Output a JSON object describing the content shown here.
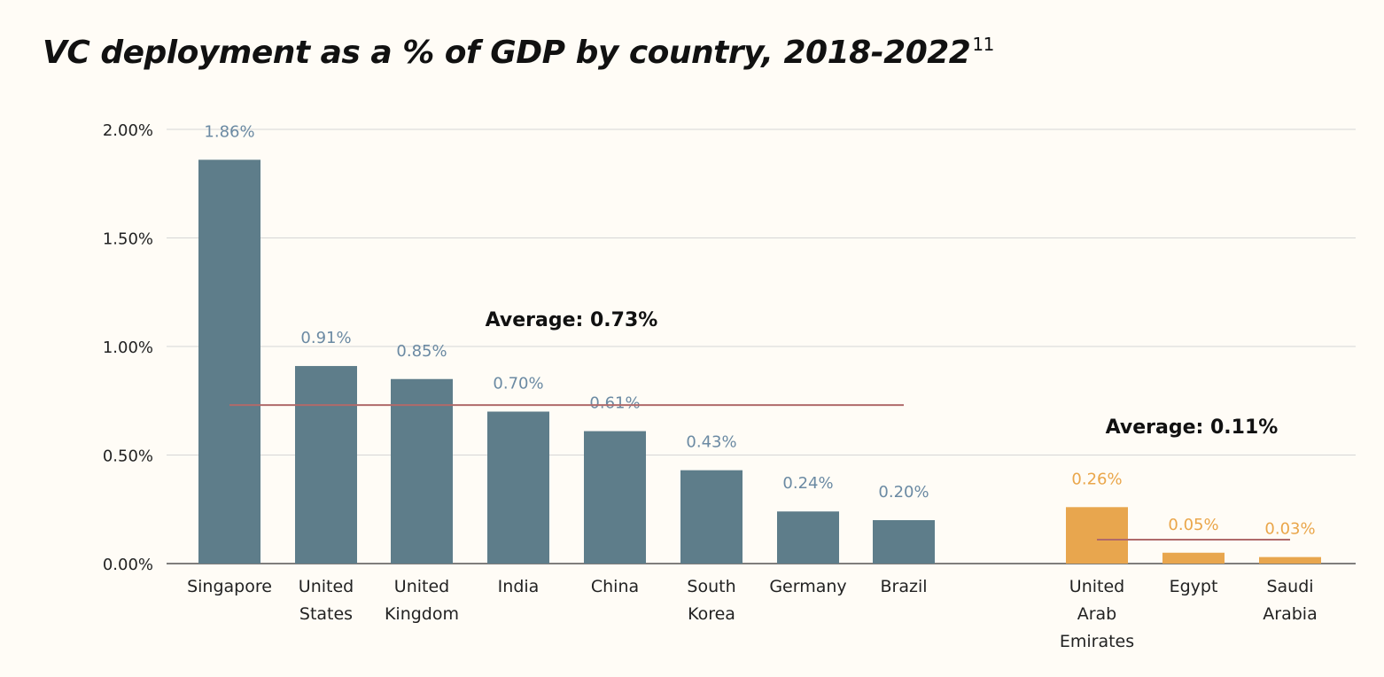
{
  "chart_data": {
    "type": "bar",
    "title": "VC deployment as a % of GDP by country, 2018-2022",
    "title_footnote": "11",
    "ylim": [
      0,
      2.0
    ],
    "y_ticks": [
      {
        "value": 0.0,
        "label": "0.00%"
      },
      {
        "value": 0.5,
        "label": "0.50%"
      },
      {
        "value": 1.0,
        "label": "1.00%"
      },
      {
        "value": 1.5,
        "label": "1.50%"
      },
      {
        "value": 2.0,
        "label": "2.00%"
      }
    ],
    "grid": true,
    "groups": [
      {
        "color": "#5e7d8a",
        "label_color": "#6b8aa3",
        "bars": [
          {
            "category": [
              "Singapore"
            ],
            "value": 1.86,
            "label": "1.86%"
          },
          {
            "category": [
              "United",
              "States"
            ],
            "value": 0.91,
            "label": "0.91%"
          },
          {
            "category": [
              "United",
              "Kingdom"
            ],
            "value": 0.85,
            "label": "0.85%"
          },
          {
            "category": [
              "India"
            ],
            "value": 0.7,
            "label": "0.70%"
          },
          {
            "category": [
              "China"
            ],
            "value": 0.61,
            "label": "0.61%"
          },
          {
            "category": [
              "South",
              "Korea"
            ],
            "value": 0.43,
            "label": "0.43%"
          },
          {
            "category": [
              "Germany"
            ],
            "value": 0.24,
            "label": "0.24%"
          },
          {
            "category": [
              "Brazil"
            ],
            "value": 0.2,
            "label": "0.20%"
          }
        ],
        "average": {
          "value": 0.73,
          "label": "Average: 0.73%",
          "color": "#b06a6a"
        }
      },
      {
        "color": "#e8a64e",
        "label_color": "#eaa64a",
        "bars": [
          {
            "category": [
              "United",
              "Arab",
              "Emirates"
            ],
            "value": 0.26,
            "label": "0.26%"
          },
          {
            "category": [
              "Egypt"
            ],
            "value": 0.05,
            "label": "0.05%"
          },
          {
            "category": [
              "Saudi",
              "Arabia"
            ],
            "value": 0.03,
            "label": "0.03%"
          }
        ],
        "average": {
          "value": 0.11,
          "label": "Average: 0.11%",
          "color": "#b06a6a"
        }
      }
    ]
  }
}
